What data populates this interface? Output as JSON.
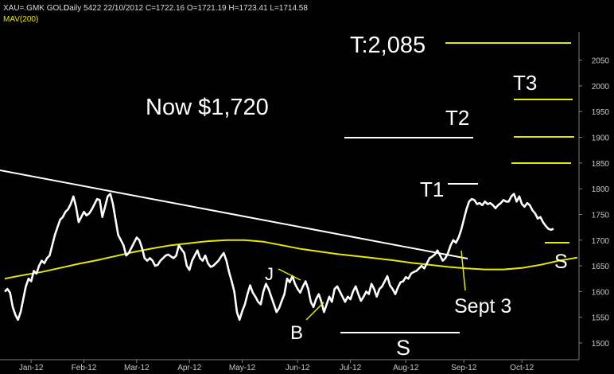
{
  "header": {
    "symbol": "XAU=.GMK GOLD",
    "info": "Daily 5422 22/10/2012 C=1722.16 O=1721.19 H=1723.41 L=1714.58",
    "ma_label": "MAV(200)"
  },
  "colors": {
    "background": "#000000",
    "price": "#ffffff",
    "ma": "#e8e800",
    "trendline": "#ffffff",
    "target_line": "#e8e800",
    "axis_text": "#c8c8c8"
  },
  "annotations": {
    "now": "Now $1,720",
    "target": "T:2,085",
    "t1": "T1",
    "t2": "T2",
    "t3": "T3",
    "j": "J",
    "b": "B",
    "s_bottom": "S",
    "s_right": "S",
    "sept3": "Sept 3"
  },
  "chart_data": {
    "type": "line",
    "title": "XAU=.GMK GOLD",
    "xlabel": "",
    "ylabel": "",
    "ylim": [
      1480,
      2110
    ],
    "y_ticks": [
      1500,
      1550,
      1600,
      1650,
      1700,
      1750,
      1800,
      1850,
      1900,
      1950,
      2000,
      2050
    ],
    "x_tick_labels": [
      "Jan-12",
      "Feb-12",
      "Mar-12",
      "Apr-12",
      "May-12",
      "Jun-12",
      "Jul-12",
      "Aug-12",
      "Sep-12",
      "Oct-12"
    ],
    "x_tick_index": [
      10,
      30,
      50,
      70,
      90,
      111,
      131,
      152,
      174,
      196
    ],
    "grid": false,
    "series": [
      {
        "name": "XAU=.GMK GOLD",
        "values": [
          1600,
          1605,
          1598,
          1570,
          1555,
          1545,
          1560,
          1585,
          1610,
          1625,
          1620,
          1640,
          1635,
          1650,
          1660,
          1655,
          1665,
          1670,
          1690,
          1710,
          1725,
          1740,
          1745,
          1755,
          1760,
          1770,
          1785,
          1765,
          1735,
          1745,
          1755,
          1748,
          1752,
          1760,
          1770,
          1780,
          1778,
          1745,
          1765,
          1785,
          1790,
          1770,
          1740,
          1710,
          1700,
          1690,
          1670,
          1675,
          1685,
          1695,
          1705,
          1700,
          1685,
          1665,
          1660,
          1665,
          1660,
          1650,
          1652,
          1660,
          1665,
          1670,
          1672,
          1668,
          1665,
          1670,
          1690,
          1682,
          1675,
          1650,
          1642,
          1660,
          1670,
          1680,
          1665,
          1660,
          1670,
          1655,
          1648,
          1650,
          1655,
          1660,
          1668,
          1675,
          1660,
          1638,
          1620,
          1600,
          1560,
          1545,
          1562,
          1575,
          1595,
          1612,
          1598,
          1590,
          1580,
          1575,
          1600,
          1615,
          1605,
          1590,
          1575,
          1560,
          1568,
          1582,
          1595,
          1625,
          1618,
          1630,
          1615,
          1605,
          1598,
          1610,
          1620,
          1605,
          1580,
          1570,
          1585,
          1595,
          1580,
          1560,
          1575,
          1590,
          1580,
          1605,
          1610,
          1600,
          1590,
          1580,
          1590,
          1585,
          1600,
          1610,
          1595,
          1582,
          1590,
          1600,
          1595,
          1615,
          1605,
          1590,
          1605,
          1610,
          1620,
          1630,
          1612,
          1605,
          1595,
          1608,
          1618,
          1620,
          1628,
          1625,
          1635,
          1638,
          1640,
          1645,
          1650,
          1645,
          1655,
          1665,
          1668,
          1672,
          1680,
          1670,
          1660,
          1665,
          1675,
          1690,
          1700,
          1695,
          1705,
          1720,
          1740,
          1760,
          1775,
          1780,
          1778,
          1770,
          1772,
          1768,
          1775,
          1770,
          1772,
          1768,
          1762,
          1768,
          1772,
          1778,
          1775,
          1775,
          1785,
          1790,
          1775,
          1785,
          1770,
          1765,
          1772,
          1768,
          1758,
          1752,
          1742,
          1745,
          1735,
          1728,
          1722,
          1720,
          1722
        ]
      },
      {
        "name": "MAV(200)",
        "values": [
          1625,
          1632,
          1638,
          1646,
          1654,
          1661,
          1669,
          1677,
          1684,
          1690,
          1694,
          1698,
          1700,
          1700,
          1697,
          1690,
          1683,
          1678,
          1673,
          1669,
          1665,
          1661,
          1656,
          1652,
          1648,
          1645,
          1643,
          1643,
          1646,
          1652,
          1660,
          1666
        ]
      }
    ],
    "ma_x_index": [
      0,
      7,
      14,
      21,
      28,
      35,
      42,
      49,
      56,
      63,
      70,
      77,
      84,
      91,
      98,
      105,
      112,
      119,
      126,
      133,
      140,
      147,
      154,
      161,
      168,
      175,
      182,
      189,
      196,
      203,
      210,
      217
    ]
  }
}
